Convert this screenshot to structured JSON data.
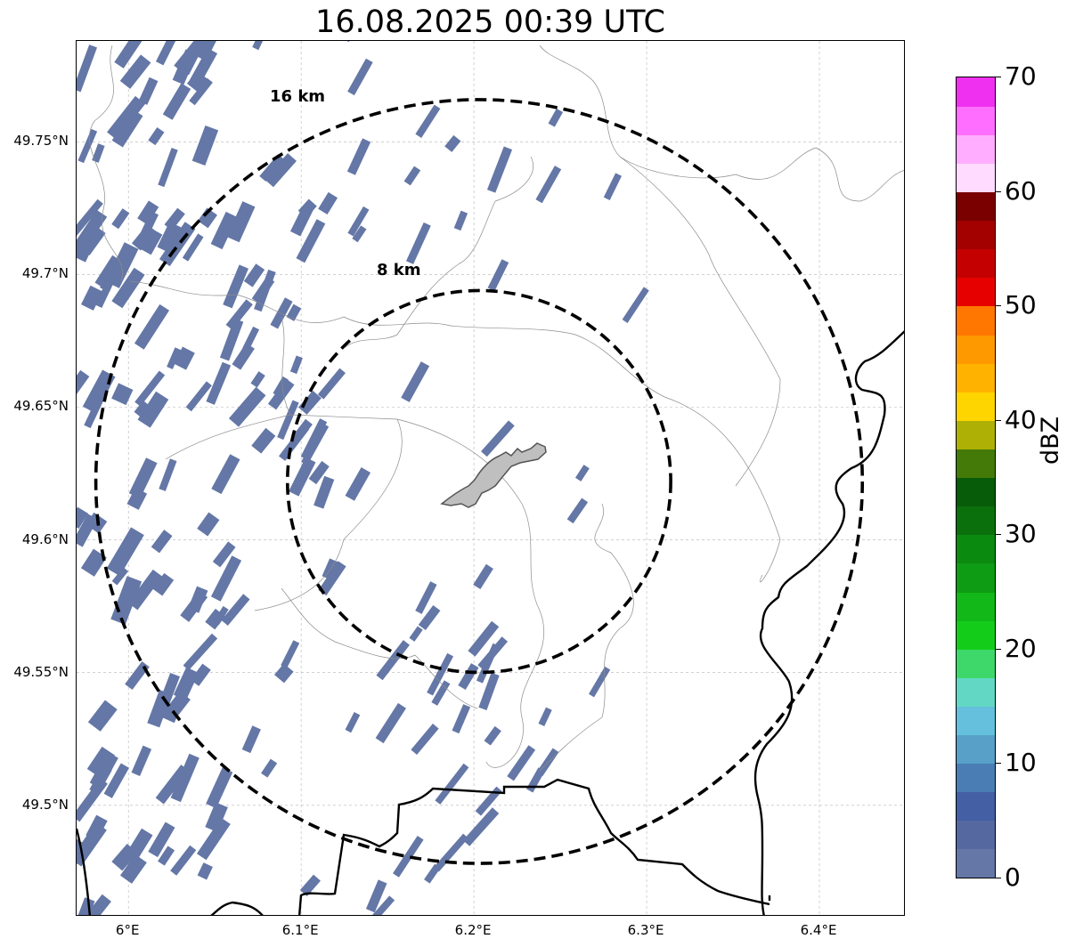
{
  "title": "16.08.2025 00:39 UTC",
  "map": {
    "extent": {
      "lon_min": 5.97,
      "lon_max": 6.45,
      "lat_min": 49.458,
      "lat_max": 49.788
    },
    "radar_site": {
      "lon": 6.203,
      "lat": 49.622
    },
    "x_ticks": [
      {
        "value": 6.0,
        "label": "6°E"
      },
      {
        "value": 6.1,
        "label": "6.1°E"
      },
      {
        "value": 6.2,
        "label": "6.2°E"
      },
      {
        "value": 6.3,
        "label": "6.3°E"
      },
      {
        "value": 6.4,
        "label": "6.4°E"
      }
    ],
    "y_ticks": [
      {
        "value": 49.75,
        "label": "49.75°N"
      },
      {
        "value": 49.7,
        "label": "49.7°N"
      },
      {
        "value": 49.65,
        "label": "49.65°N"
      },
      {
        "value": 49.6,
        "label": "49.6°N"
      },
      {
        "value": 49.55,
        "label": "49.55°N"
      },
      {
        "value": 49.5,
        "label": "49.5°N"
      }
    ],
    "grid": true,
    "range_rings": [
      {
        "km": 8,
        "label": "8 km"
      },
      {
        "km": 16,
        "label": "16 km"
      }
    ],
    "echo_color": "#6477a6",
    "echo_value_dbz": 2
  },
  "colorbar": {
    "label": "dBZ",
    "min": 0,
    "max": 70,
    "ticks": [
      {
        "value": 0,
        "label": "0"
      },
      {
        "value": 10,
        "label": "10"
      },
      {
        "value": 20,
        "label": "20"
      },
      {
        "value": 30,
        "label": "30"
      },
      {
        "value": 40,
        "label": "40"
      },
      {
        "value": 50,
        "label": "50"
      },
      {
        "value": 60,
        "label": "60"
      },
      {
        "value": 70,
        "label": "70"
      }
    ],
    "colors": [
      "#6477a6",
      "#5568a0",
      "#445fa3",
      "#4a7db3",
      "#58a0c8",
      "#64c0dc",
      "#62d8c4",
      "#3ed86a",
      "#13cc1a",
      "#11b818",
      "#0e9c14",
      "#0b8a10",
      "#0a700c",
      "#075c09",
      "#447a08",
      "#aeb006",
      "#ffd500",
      "#ffb200",
      "#ff9900",
      "#ff7700",
      "#e60000",
      "#c40000",
      "#a30000",
      "#7a0000",
      "#ffdcff",
      "#ffaeff",
      "#ff6eff",
      "#f030f0"
    ]
  }
}
